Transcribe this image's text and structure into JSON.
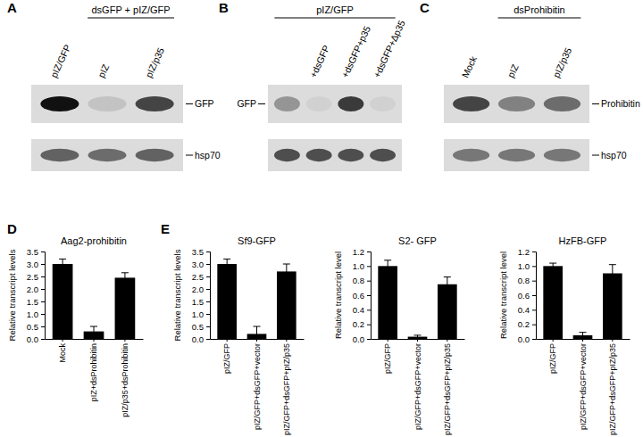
{
  "chart_data": [
    {
      "type": "blot",
      "panel": "A",
      "categories": [
        "pIZ/GFP",
        "pIZ",
        "pIZ/p35"
      ],
      "groups": [
        {
          "label": "dsGFP + pIZ/GFP",
          "lanes": [
            1,
            2
          ]
        }
      ],
      "intensity_range": [
        0,
        1
      ],
      "series": [
        {
          "name": "GFP",
          "values": [
            1.0,
            0.12,
            0.75
          ]
        },
        {
          "name": "hsp70",
          "values": [
            0.6,
            0.55,
            0.6
          ]
        }
      ]
    },
    {
      "type": "blot",
      "panel": "B",
      "categories": [
        null,
        "+dsGFP",
        "+dsGFP+p35",
        "+dsGFP+Δp35"
      ],
      "groups": [
        {
          "label": "pIZ/GFP",
          "lanes": [
            0,
            3
          ]
        }
      ],
      "intensity_range": [
        0,
        1
      ],
      "series": [
        {
          "name": "GFP",
          "values": [
            0.35,
            0.05,
            0.8,
            0.05
          ]
        },
        {
          "values": [
            0.7,
            0.7,
            0.7,
            0.7
          ]
        }
      ]
    },
    {
      "type": "blot",
      "panel": "C",
      "categories": [
        "Mock",
        "pIZ",
        "pIZ/p35"
      ],
      "groups": [
        {
          "label": "dsProhibitin",
          "lanes": [
            1,
            2
          ]
        }
      ],
      "intensity_range": [
        0,
        1
      ],
      "series": [
        {
          "name": "Prohibitin",
          "values": [
            0.75,
            0.45,
            0.55
          ]
        },
        {
          "name": "hsp70",
          "values": [
            0.5,
            0.5,
            0.5
          ]
        }
      ]
    },
    {
      "type": "bar",
      "panel": "D",
      "title": "Aag2-prohibitin",
      "y_label": "Relative transcript levels",
      "categories": [
        "Mock",
        "pIZ+dsProhibitin",
        "pIZ/p35+dsProhibitin"
      ],
      "values": [
        3.0,
        0.3,
        2.45
      ],
      "errors": [
        0.2,
        0.2,
        0.2
      ],
      "color": "#000000",
      "ylim": [
        0,
        3.5
      ],
      "yticks": [
        {
          "value": 0,
          "label": "0.0"
        },
        0.5,
        {
          "value": 1,
          "label": "1.0"
        },
        1.5,
        {
          "value": 2,
          "label": "2.0"
        },
        2.5,
        {
          "value": 3,
          "label": "3.0"
        },
        3.5
      ]
    },
    {
      "type": "bar",
      "panel": "E",
      "title": "Sf9-GFP",
      "y_label": "Relative transcript levels",
      "categories": [
        "pIZ/GFP",
        "pIZ/GFP+dsGFP+vector",
        "pIZ/GFP+dsGFP+pIZ/p35"
      ],
      "values": [
        3.0,
        0.2,
        2.7
      ],
      "errors": [
        0.2,
        0.3,
        0.3
      ],
      "color": "#000000",
      "ylim": [
        0,
        3.5
      ],
      "yticks": [
        {
          "value": 0,
          "label": "0.0"
        },
        0.5,
        {
          "value": 1,
          "label": "1.0"
        },
        1.5,
        {
          "value": 2,
          "label": "2.0"
        },
        2.5,
        {
          "value": 3,
          "label": "3.0"
        },
        3.5
      ]
    },
    {
      "type": "bar",
      "title": "S2- GFP",
      "y_label": "Relative transcript level",
      "categories": [
        "pIZ/GFP",
        "pIZ/GFP+dsGFP+vector",
        "pIZ/GFP+dsGFP+pIZ/p35"
      ],
      "values": [
        1.0,
        0.03,
        0.75
      ],
      "errors": [
        0.08,
        0.02,
        0.1
      ],
      "color": "#000000",
      "ylim": [
        0,
        1.2
      ],
      "yticks": [
        {
          "value": 0,
          "label": "0.0"
        },
        0.2,
        0.4,
        0.6,
        0.8,
        {
          "value": 1,
          "label": "1.0"
        },
        1.2
      ]
    },
    {
      "type": "bar",
      "title": "HzFB-GFP",
      "y_label": "Relative transcript level",
      "categories": [
        "pIZ/GFP",
        "pIZ/GFP+dsGFP+vector",
        "pIZ/GFP+dsGFP+pIZ/p35"
      ],
      "values": [
        1.0,
        0.05,
        0.9
      ],
      "errors": [
        0.04,
        0.04,
        0.12
      ],
      "color": "#000000",
      "ylim": [
        0,
        1.2
      ],
      "yticks": [
        {
          "value": 0,
          "label": "0.0"
        },
        0.2,
        0.4,
        0.6,
        0.8,
        {
          "value": 1,
          "label": "1.0"
        },
        1.2
      ]
    }
  ]
}
